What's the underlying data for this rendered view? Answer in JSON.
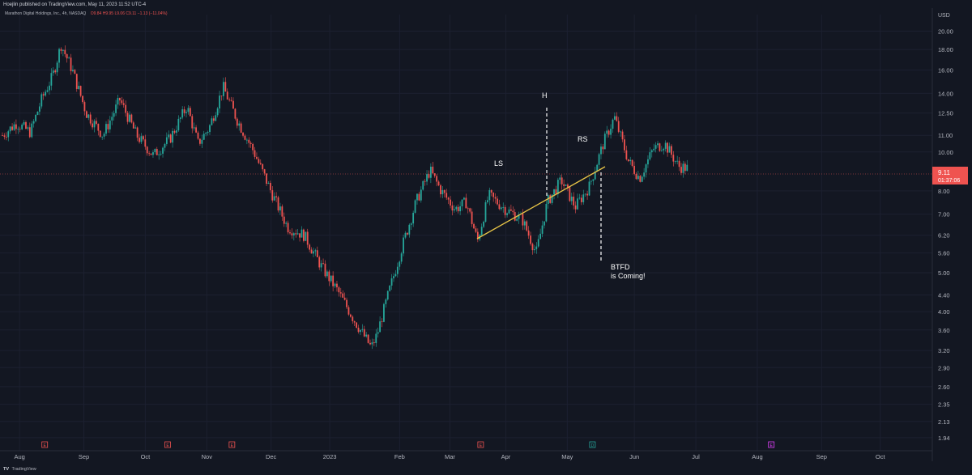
{
  "header": {
    "publisher_line": "Hoejlin published on TradingView.com, May 11, 2023 11:52 UTC-4",
    "symbol_line": "Marathon Digital Holdings, Inc., 4h, NASDAQ",
    "ohlc_line": "O9.84 H9.95 L9.06 C9.11 −1.13 (−11.04%)"
  },
  "footer": {
    "logo": "TV",
    "brand": "TradingView"
  },
  "colors": {
    "background": "#131722",
    "up": "#26a69a",
    "down": "#ef5350",
    "trendline": "#e8c547",
    "annotation": "#ffffff",
    "price_badge": "#ef5350"
  },
  "chart_data": {
    "type": "candlestick",
    "y_scale": "log",
    "ylim": [
      1.8,
      22
    ],
    "currency_label": "USD",
    "y_ticks": [
      "20.00",
      "18.00",
      "16.00",
      "14.00",
      "12.50",
      "11.00",
      "10.00",
      "8.00",
      "7.00",
      "6.20",
      "5.60",
      "5.00",
      "4.40",
      "4.00",
      "3.60",
      "3.20",
      "2.90",
      "2.60",
      "2.35",
      "2.13",
      "1.94"
    ],
    "x_labels": [
      "Aug",
      "Sep",
      "Oct",
      "Nov",
      "Dec",
      "2023",
      "Feb",
      "Mar",
      "Apr",
      "May",
      "Jun",
      "Jul",
      "Aug",
      "Sep",
      "Oct"
    ],
    "last_price": "9.11",
    "countdown": "01:37:06",
    "price_path": [
      {
        "d": 0,
        "p": 11.0
      },
      {
        "d": 5,
        "p": 11.8
      },
      {
        "d": 10,
        "p": 11.2
      },
      {
        "d": 14,
        "p": 13.5
      },
      {
        "d": 18,
        "p": 15.5
      },
      {
        "d": 21,
        "p": 18.5
      },
      {
        "d": 25,
        "p": 16.0
      },
      {
        "d": 30,
        "p": 12.5
      },
      {
        "d": 36,
        "p": 11.0
      },
      {
        "d": 42,
        "p": 13.5
      },
      {
        "d": 48,
        "p": 11.0
      },
      {
        "d": 54,
        "p": 9.8
      },
      {
        "d": 60,
        "p": 10.8
      },
      {
        "d": 66,
        "p": 13.0
      },
      {
        "d": 70,
        "p": 10.5
      },
      {
        "d": 74,
        "p": 11.5
      },
      {
        "d": 79,
        "p": 14.5
      },
      {
        "d": 84,
        "p": 12.0
      },
      {
        "d": 90,
        "p": 10.0
      },
      {
        "d": 96,
        "p": 8.0
      },
      {
        "d": 102,
        "p": 6.5
      },
      {
        "d": 108,
        "p": 6.2
      },
      {
        "d": 114,
        "p": 5.2
      },
      {
        "d": 120,
        "p": 4.5
      },
      {
        "d": 126,
        "p": 3.8
      },
      {
        "d": 132,
        "p": 3.25
      },
      {
        "d": 134,
        "p": 3.5
      },
      {
        "d": 138,
        "p": 4.4
      },
      {
        "d": 143,
        "p": 5.8
      },
      {
        "d": 148,
        "p": 7.5
      },
      {
        "d": 153,
        "p": 9.0
      },
      {
        "d": 157,
        "p": 8.0
      },
      {
        "d": 162,
        "p": 7.2
      },
      {
        "d": 166,
        "p": 7.5
      },
      {
        "d": 170,
        "p": 6.0
      },
      {
        "d": 174,
        "p": 7.8
      },
      {
        "d": 180,
        "p": 7.2
      },
      {
        "d": 186,
        "p": 6.8
      },
      {
        "d": 191,
        "p": 5.6
      },
      {
        "d": 195,
        "p": 7.5
      },
      {
        "d": 200,
        "p": 8.5
      },
      {
        "d": 205,
        "p": 7.3
      },
      {
        "d": 210,
        "p": 8.2
      },
      {
        "d": 215,
        "p": 10.5
      },
      {
        "d": 219,
        "p": 12.2
      },
      {
        "d": 224,
        "p": 9.5
      },
      {
        "d": 228,
        "p": 8.6
      },
      {
        "d": 233,
        "p": 10.2
      },
      {
        "d": 237,
        "p": 10.5
      },
      {
        "d": 242,
        "p": 9.2
      },
      {
        "d": 245,
        "p": 9.11
      }
    ],
    "annotations": {
      "left_shoulder": "LS",
      "head": "H",
      "right_shoulder": "RS",
      "callout_line1": "BTFD",
      "callout_line2": "is Coming!"
    },
    "event_markers": [
      "E",
      "E",
      "E",
      "E",
      "D",
      "E"
    ]
  }
}
